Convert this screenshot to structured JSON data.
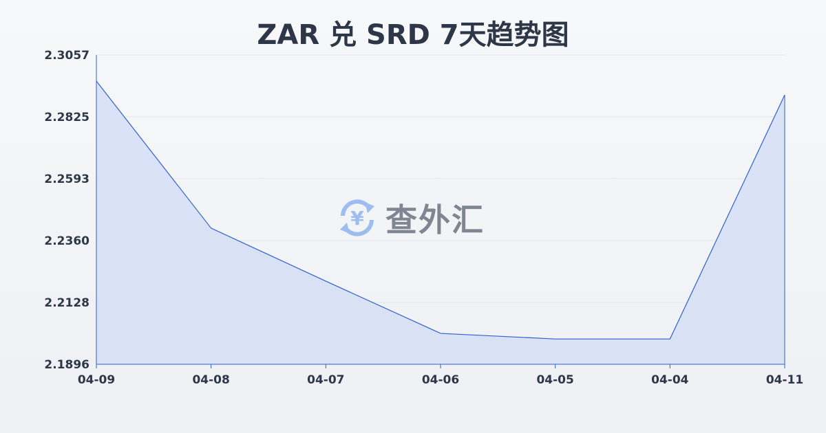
{
  "chart_data": {
    "type": "area",
    "title": "ZAR 兑 SRD 7天趋势图",
    "xlabel": "",
    "ylabel": "",
    "categories": [
      "04-09",
      "04-08",
      "04-07",
      "04-06",
      "04-05",
      "04-04",
      "04-11"
    ],
    "values": [
      2.2959,
      2.2407,
      2.2208,
      2.2012,
      2.1991,
      2.1991,
      2.2907
    ],
    "yticks": [
      "2.1896",
      "2.2128",
      "2.2360",
      "2.2593",
      "2.2825",
      "2.3057"
    ],
    "ylim": [
      2.1896,
      2.3057
    ],
    "grid": true,
    "colors": {
      "line": "#2f5fd0",
      "fill": "#d6e0f5",
      "grid": "#e2e5ea"
    }
  },
  "watermark": {
    "text": "查外汇",
    "icon": "yen-exchange-icon",
    "icon_color": "#8fb4f0"
  }
}
